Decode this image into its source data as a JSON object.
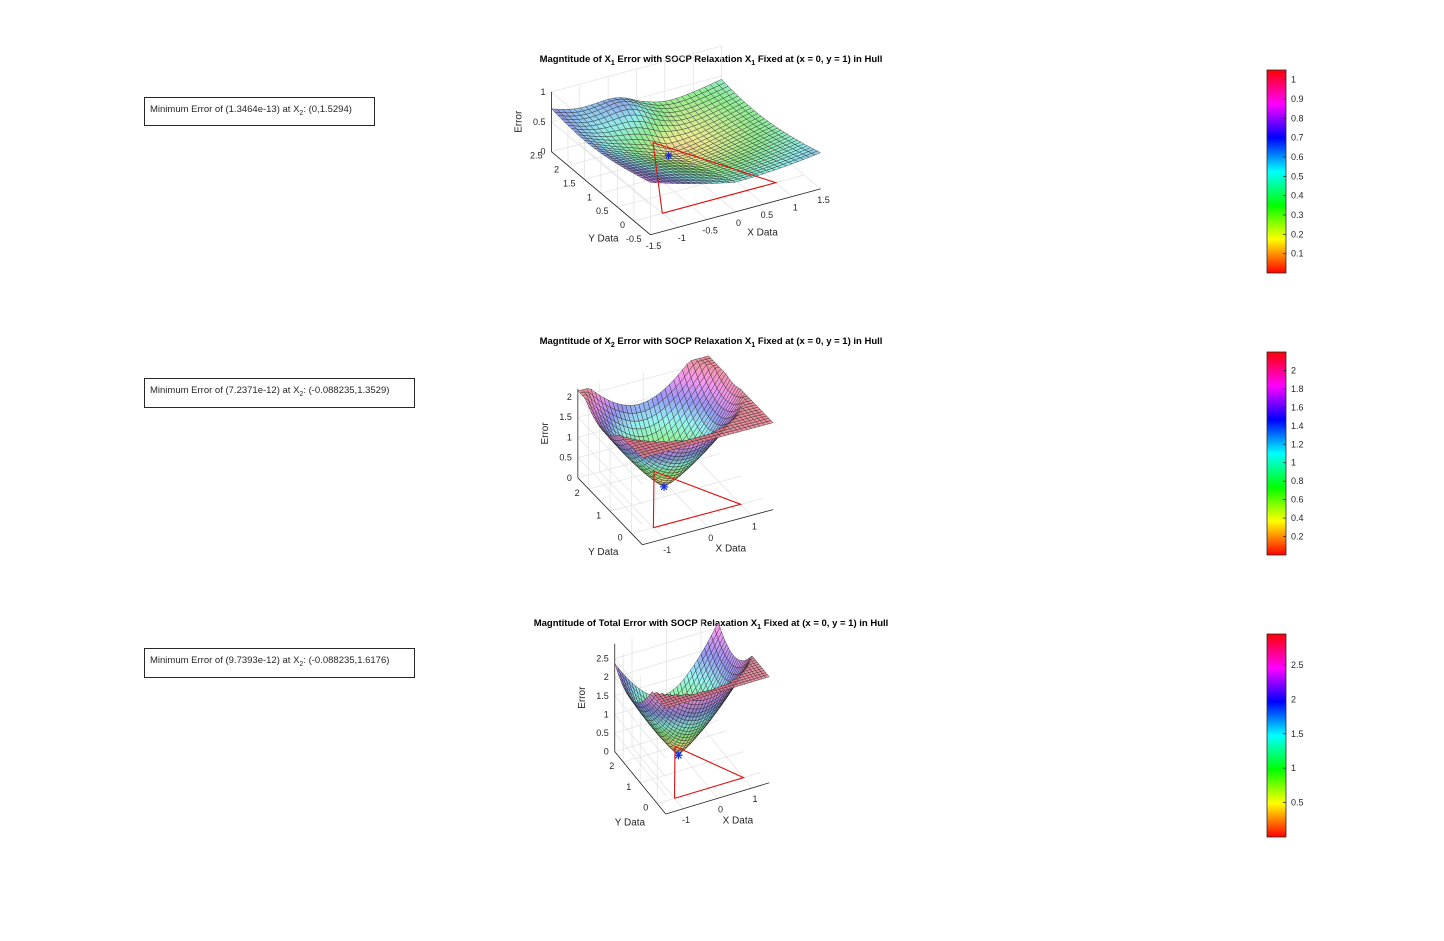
{
  "figure": {
    "panels": [
      {
        "title_parts": [
          "Magntitude of X",
          "1",
          " Error with SOCP Relaxation X",
          "1",
          " Fixed at (x = 0, y = 1) in Hull"
        ],
        "annotation_parts": [
          "Minimum Error of (1.3464e-13) at X",
          "2",
          ": (0,1.5294)"
        ]
      },
      {
        "title_parts": [
          "Magntitude of X",
          "2",
          " Error with SOCP Relaxation X",
          "1",
          " Fixed at (x = 0, y = 1) in Hull"
        ],
        "annotation_parts": [
          "Minimum Error of (7.2371e-12) at X",
          "2",
          ": (-0.088235,1.3529)"
        ]
      },
      {
        "title_parts": [
          "Magntitude of Total Error with SOCP Relaxation X",
          "1",
          " Fixed at (x = 0, y = 1) in Hull"
        ],
        "annotation_parts": [
          "Minimum Error of (9.7393e-12) at X",
          "2",
          ": (-0.088235,1.6176)"
        ]
      }
    ]
  },
  "chart_data": [
    {
      "type": "surface",
      "title": "Magntitude of X1 Error with SOCP Relaxation X1 Fixed at (x = 0, y = 1) in Hull",
      "xlabel": "X Data",
      "ylabel": "Y Data",
      "zlabel": "Error",
      "xlim": [
        -1.5,
        1.5
      ],
      "ylim": [
        -0.5,
        2.5
      ],
      "zlim": [
        0,
        1
      ],
      "xticks": [
        "-1.5",
        "-1",
        "-0.5",
        "0",
        "0.5",
        "1",
        "1.5"
      ],
      "yticks": [
        "-0.5",
        "0",
        "0.5",
        "1",
        "1.5",
        "2",
        "2.5"
      ],
      "zticks": [
        "0",
        "0.5",
        "1"
      ],
      "fixed_point": [
        0,
        1
      ],
      "minimum": {
        "x": 0,
        "y": 1.5294,
        "error": 1.3464e-13
      },
      "hull": [
        [
          -1,
          0
        ],
        [
          1,
          0
        ],
        [
          0,
          2
        ]
      ],
      "grid": true,
      "colorbar": {
        "ticks": [
          "0.1",
          "0.2",
          "0.3",
          "0.4",
          "0.5",
          "0.6",
          "0.7",
          "0.8",
          "0.9",
          "1"
        ],
        "range": [
          0,
          1.05
        ],
        "colormap": "hsv"
      }
    },
    {
      "type": "surface",
      "title": "Magntitude of X2 Error with SOCP Relaxation X1 Fixed at (x = 0, y = 1) in Hull",
      "xlabel": "X Data",
      "ylabel": "Y Data",
      "zlabel": "Error",
      "xlim": [
        -1.5,
        1.5
      ],
      "ylim": [
        -0.5,
        2.5
      ],
      "zlim": [
        0,
        2.2
      ],
      "xticks": [
        "-1",
        "0",
        "1"
      ],
      "yticks": [
        "0",
        "1",
        "2"
      ],
      "zticks": [
        "0",
        "0.5",
        "1",
        "1.5",
        "2"
      ],
      "fixed_point": [
        0,
        1
      ],
      "minimum": {
        "x": -0.088235,
        "y": 1.3529,
        "error": 7.2371e-12
      },
      "hull": [
        [
          -1,
          0
        ],
        [
          1,
          0
        ],
        [
          0,
          2
        ]
      ],
      "grid": true,
      "colorbar": {
        "ticks": [
          "0.2",
          "0.4",
          "0.6",
          "0.8",
          "1",
          "1.2",
          "1.4",
          "1.6",
          "1.8",
          "2"
        ],
        "range": [
          0,
          2.2
        ],
        "colormap": "hsv"
      }
    },
    {
      "type": "surface",
      "title": "Magntitude of Total Error with SOCP Relaxation X1 Fixed at (x = 0, y = 1) in Hull",
      "xlabel": "X Data",
      "ylabel": "Y Data",
      "zlabel": "Error",
      "xlim": [
        -1.5,
        1.5
      ],
      "ylim": [
        -0.5,
        2.5
      ],
      "zlim": [
        0,
        2.9
      ],
      "xticks": [
        "-1",
        "0",
        "1"
      ],
      "yticks": [
        "0",
        "1",
        "2"
      ],
      "zticks": [
        "0",
        "0.5",
        "1",
        "1.5",
        "2",
        "2.5"
      ],
      "fixed_point": [
        0,
        1
      ],
      "minimum": {
        "x": -0.088235,
        "y": 1.6176,
        "error": 9.7393e-12
      },
      "hull": [
        [
          -1,
          0
        ],
        [
          1,
          0
        ],
        [
          0,
          2
        ]
      ],
      "grid": true,
      "colorbar": {
        "ticks": [
          "0.5",
          "1",
          "1.5",
          "2",
          "2.5"
        ],
        "range": [
          0,
          2.95
        ],
        "colormap": "hsv"
      }
    }
  ]
}
